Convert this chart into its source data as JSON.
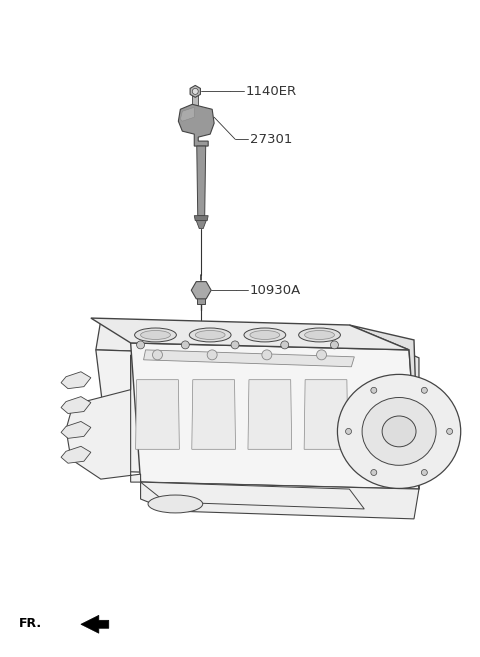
{
  "bg_color": "#ffffff",
  "fig_width": 4.8,
  "fig_height": 6.57,
  "dpi": 100,
  "bolt_label": "1140ER",
  "coil_label": "27301",
  "spark_label": "10930A",
  "fr_label": "FR.",
  "line_color": "#333333",
  "label_color": "#333333",
  "part_color": "#999999",
  "part_color_light": "#bbbbbb",
  "part_color_dark": "#666666",
  "engine_fill": "#f5f5f5",
  "engine_edge": "#444444"
}
